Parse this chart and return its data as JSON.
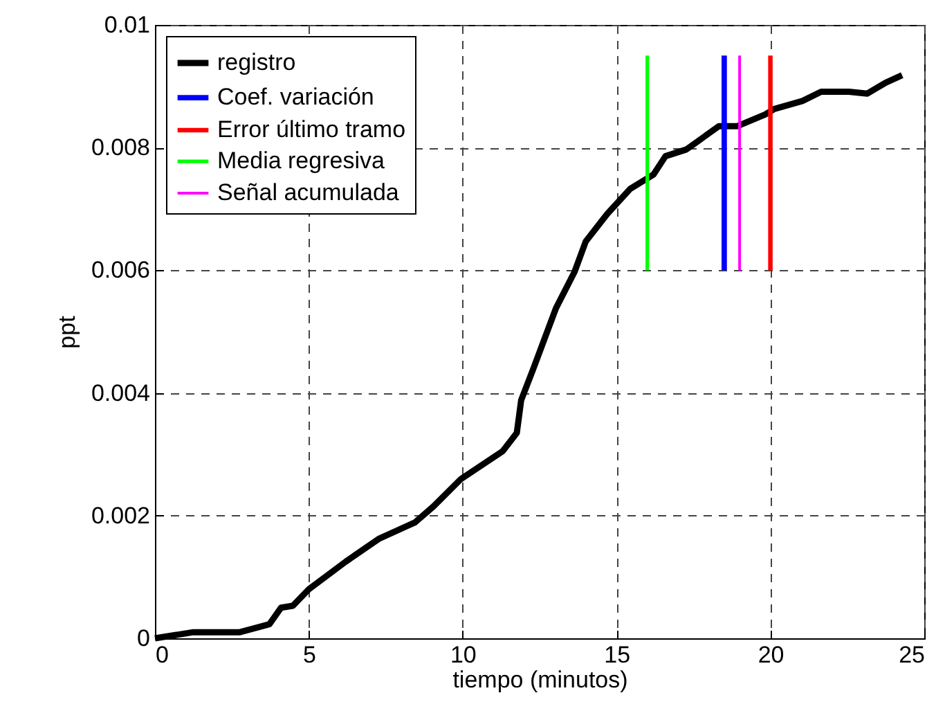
{
  "chart_data": {
    "type": "line",
    "xlabel": "tiempo (minutos)",
    "ylabel": "ppt",
    "xlim": [
      0,
      25
    ],
    "xticks": [
      0,
      5,
      10,
      15,
      20,
      25
    ],
    "ylim": [
      0,
      0.01
    ],
    "yticks": [
      {
        "value": 0,
        "label": "0"
      },
      0.002,
      0.004,
      0.006,
      0.008,
      {
        "value": 0.01,
        "label": "0.01"
      }
    ],
    "grid": true,
    "legend": "top left",
    "series": [
      {
        "name": "registro",
        "color": "#000000",
        "x": [
          0,
          1.25,
          2.76,
          3.72,
          4.1,
          4.48,
          5.0,
          6.2,
          7.27,
          8.45,
          9.05,
          9.95,
          11.3,
          11.76,
          11.9,
          12.3,
          13.03,
          13.64,
          14.0,
          14.7,
          15.45,
          16.2,
          16.59,
          17.27,
          18.33,
          18.93,
          19.83,
          20.13,
          21.04,
          21.65,
          22.55,
          23.15,
          23.75,
          24.28
        ],
        "values": [
          0,
          0.0001,
          0.0001,
          0.00023,
          0.0005,
          0.00053,
          0.0008,
          0.00125,
          0.00162,
          0.00189,
          0.00215,
          0.0026,
          0.00305,
          0.00335,
          0.00388,
          0.0044,
          0.00538,
          0.00598,
          0.00647,
          0.00692,
          0.00733,
          0.00756,
          0.00786,
          0.00797,
          0.00835,
          0.00835,
          0.00854,
          0.00863,
          0.00876,
          0.00891,
          0.00891,
          0.00888,
          0.00906,
          0.00918
        ]
      },
      {
        "name": "Coef. variación",
        "color": "#0000ff",
        "x": [
          18.5,
          18.5
        ],
        "values": [
          0.006,
          0.0095
        ]
      },
      {
        "name": "Error último tramo",
        "color": "#ff0000",
        "x": [
          20,
          20
        ],
        "values": [
          0.006,
          0.0095
        ]
      },
      {
        "name": "Media regresiva",
        "color": "#00ff00",
        "x": [
          16,
          16
        ],
        "values": [
          0.006,
          0.0095
        ]
      },
      {
        "name": "Señal acumulada",
        "color": "#ff00ff",
        "x": [
          19,
          19
        ],
        "values": [
          0.006,
          0.0095
        ]
      }
    ]
  }
}
